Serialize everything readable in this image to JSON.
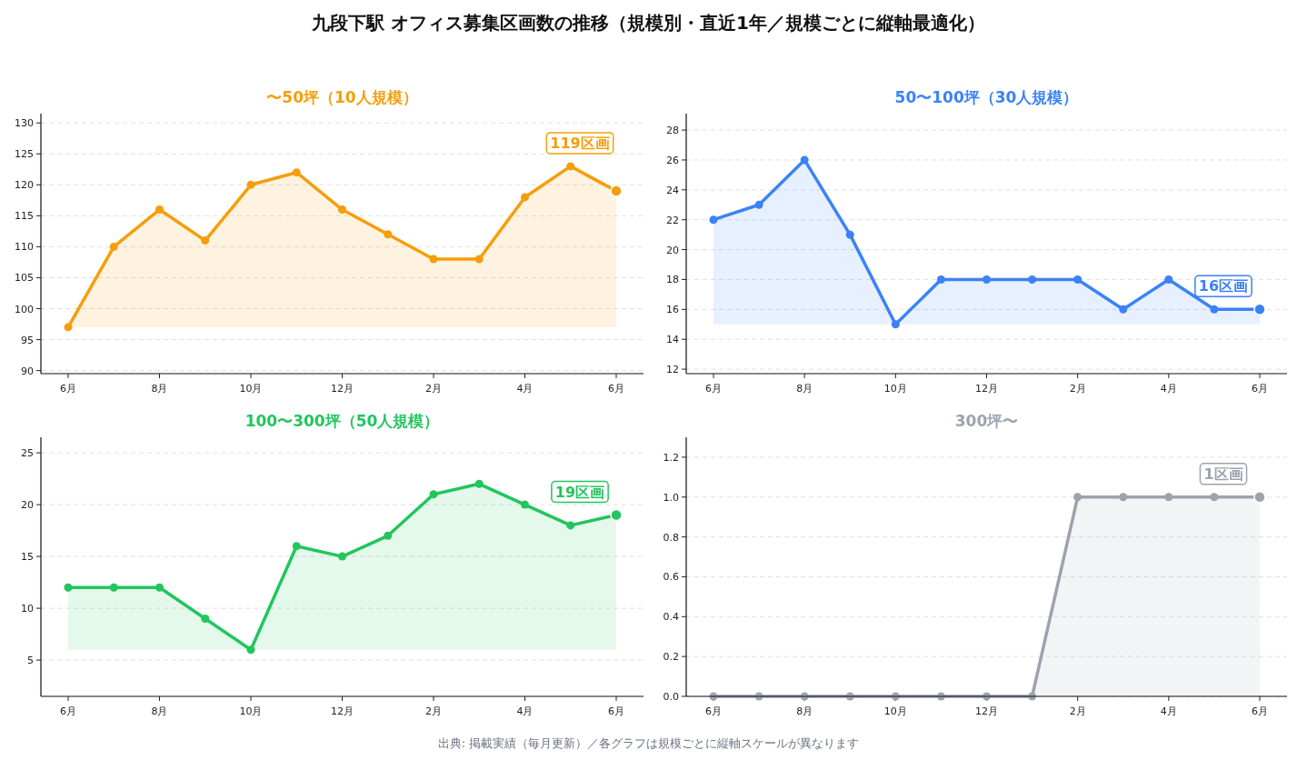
{
  "chart_data": [
    {
      "type": "other",
      "title": "九段下駅 オフィス募集区画数の推移（規模別・直近1年／規模ごとに縦軸最適化）",
      "annotations": [
        "出典: 掲載実績（毎月更新）／各グラフは規模ごとに縦軸スケールが異なります"
      ]
    },
    {
      "type": "area",
      "title": "〜50坪（10人規模）",
      "categories": [
        "6月",
        null,
        "8月",
        null,
        "10月",
        null,
        "12月",
        null,
        "2月",
        null,
        "4月",
        null,
        "6月"
      ],
      "series": [
        {
          "color": "#f59e0b",
          "values": [
            97,
            110,
            116,
            111,
            120,
            122,
            116,
            112,
            108,
            108,
            118,
            123,
            119
          ]
        }
      ],
      "ylim": [
        89.5,
        131.5
      ],
      "yticks": [
        90,
        95,
        100,
        105,
        110,
        115,
        120,
        125,
        130
      ],
      "grid": "y",
      "marker": "circle",
      "line_style": "solid",
      "annotations": [
        "119区画"
      ]
    },
    {
      "type": "area",
      "title": "50〜100坪（30人規模）",
      "categories": [
        "6月",
        null,
        "8月",
        null,
        "10月",
        null,
        "12月",
        null,
        "2月",
        null,
        "4月",
        null,
        "6月"
      ],
      "series": [
        {
          "color": "#3b82f6",
          "values": [
            22,
            23,
            26,
            21,
            15,
            18,
            18,
            18,
            18,
            16,
            18,
            16,
            16
          ]
        }
      ],
      "ylim": [
        11.7,
        29.1
      ],
      "yticks": [
        12,
        14,
        16,
        18,
        20,
        22,
        24,
        26,
        28
      ],
      "grid": "y",
      "marker": "circle",
      "line_style": "solid",
      "annotations": [
        "16区画"
      ]
    },
    {
      "type": "area",
      "title": "100〜300坪（50人規模）",
      "categories": [
        "6月",
        null,
        "8月",
        null,
        "10月",
        null,
        "12月",
        null,
        "2月",
        null,
        "4月",
        null,
        "6月"
      ],
      "series": [
        {
          "color": "#22c55e",
          "values": [
            12,
            12,
            12,
            9,
            6,
            16,
            15,
            17,
            21,
            22,
            20,
            18,
            19
          ]
        }
      ],
      "ylim": [
        1.5,
        26.5
      ],
      "yticks": [
        5,
        10,
        15,
        20,
        25
      ],
      "grid": "y",
      "marker": "circle",
      "line_style": "solid",
      "annotations": [
        "19区画"
      ]
    },
    {
      "type": "area",
      "title": "300坪〜",
      "categories": [
        "6月",
        null,
        "8月",
        null,
        "10月",
        null,
        "12月",
        null,
        "2月",
        null,
        "4月",
        null,
        "6月"
      ],
      "series": [
        {
          "color": "#9ca3af",
          "values": [
            0,
            0,
            0,
            0,
            0,
            0,
            0,
            0,
            1,
            1,
            1,
            1,
            1
          ]
        }
      ],
      "ylim": [
        0,
        1.3
      ],
      "yticks": [
        {
          "value": 0,
          "label": "0.0"
        },
        {
          "value": 0.2,
          "label": "0.2"
        },
        {
          "value": 0.4,
          "label": "0.4"
        },
        {
          "value": 0.6,
          "label": "0.6"
        },
        {
          "value": 0.8,
          "label": "0.8"
        },
        {
          "value": 1,
          "label": "1.0"
        },
        {
          "value": 1.2,
          "label": "1.2"
        }
      ],
      "grid": "y",
      "marker": "circle",
      "line_style": "solid",
      "annotations": [
        "1区画"
      ]
    }
  ]
}
